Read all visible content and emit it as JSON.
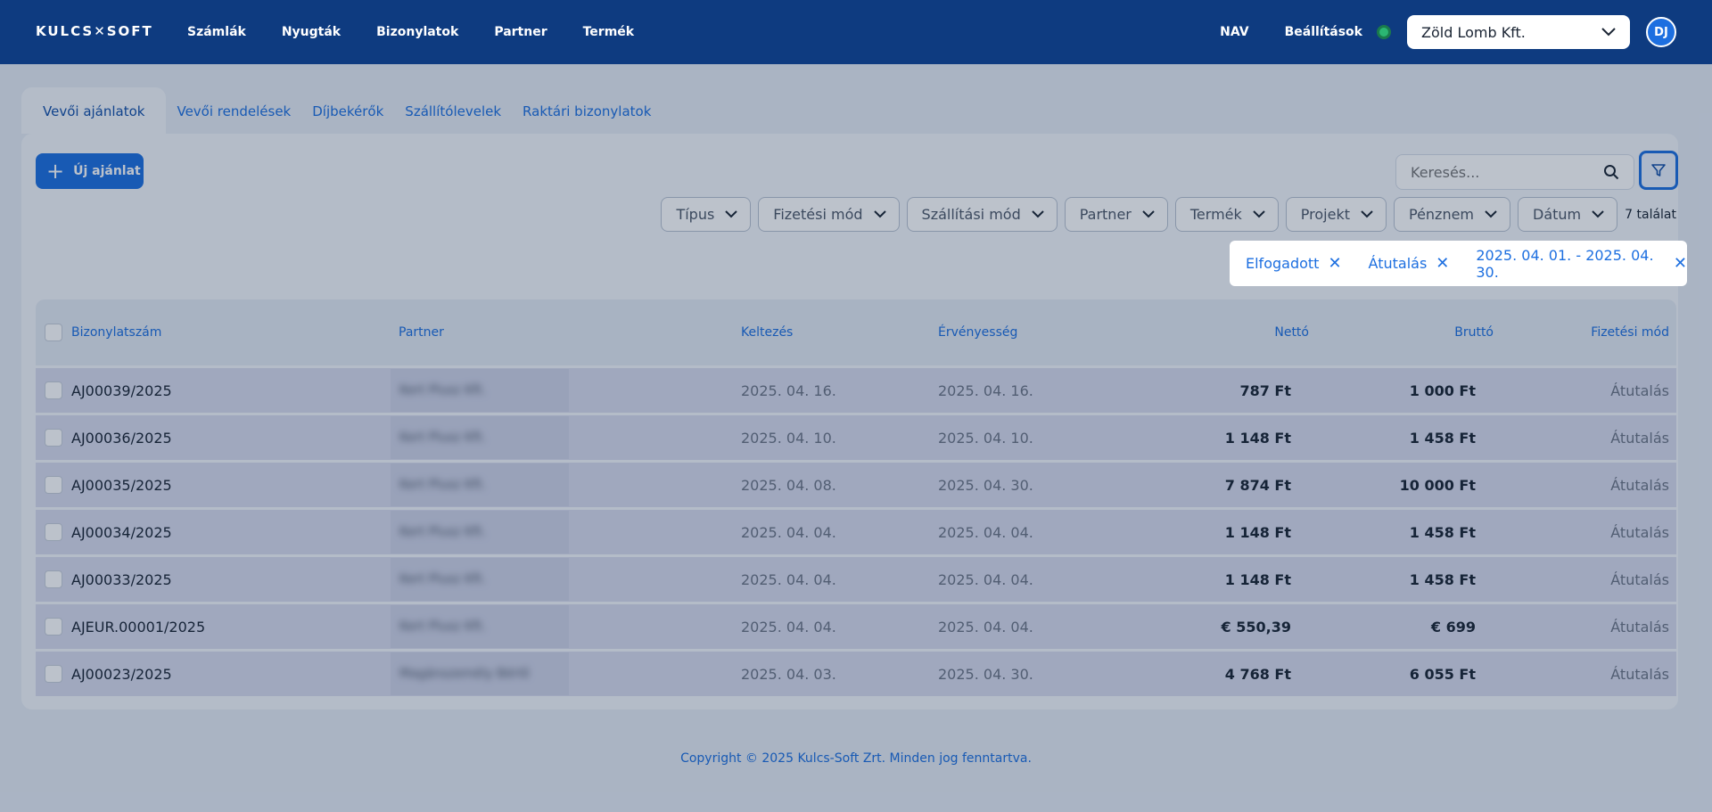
{
  "header": {
    "logo": "KULCS✕SOFT",
    "nav": [
      "Számlák",
      "Nyugták",
      "Bizonylatok",
      "Partner",
      "Termék"
    ],
    "right_links": [
      "NAV",
      "Beállítások"
    ],
    "company": "Zöld Lomb Kft.",
    "avatar": "DJ"
  },
  "tabs": [
    "Vevői ajánlatok",
    "Vevői rendelések",
    "Díjbekérők",
    "Szállítólevelek",
    "Raktári bizonylatok"
  ],
  "toolbar": {
    "new_button": "Új ajánlat",
    "search_placeholder": "Keresés..."
  },
  "filters": [
    "Típus",
    "Fizetési mód",
    "Szállítási mód",
    "Partner",
    "Termék",
    "Projekt",
    "Pénznem",
    "Dátum"
  ],
  "result_count": "7 találat",
  "active_filters": [
    "Elfogadott",
    "Átutalás",
    "2025. 04. 01. - 2025. 04. 30."
  ],
  "table": {
    "columns": [
      "Bizonylatszám",
      "Partner",
      "Keltezés",
      "Érvényesség",
      "Nettó",
      "Bruttó",
      "Fizetési mód"
    ],
    "rows": [
      {
        "doc": "AJ00039/2025",
        "partner": "Kert Plusz Kft.",
        "date": "2025. 04. 16.",
        "valid": "2025. 04. 16.",
        "net": "787 Ft",
        "gross": "1 000 Ft",
        "pay": "Átutalás"
      },
      {
        "doc": "AJ00036/2025",
        "partner": "Kert Plusz Kft.",
        "date": "2025. 04. 10.",
        "valid": "2025. 04. 10.",
        "net": "1 148 Ft",
        "gross": "1 458 Ft",
        "pay": "Átutalás"
      },
      {
        "doc": "AJ00035/2025",
        "partner": "Kert Plusz Kft.",
        "date": "2025. 04. 08.",
        "valid": "2025. 04. 30.",
        "net": "7 874 Ft",
        "gross": "10 000 Ft",
        "pay": "Átutalás"
      },
      {
        "doc": "AJ00034/2025",
        "partner": "Kert Plusz Kft.",
        "date": "2025. 04. 04.",
        "valid": "2025. 04. 04.",
        "net": "1 148 Ft",
        "gross": "1 458 Ft",
        "pay": "Átutalás"
      },
      {
        "doc": "AJ00033/2025",
        "partner": "Kert Plusz Kft.",
        "date": "2025. 04. 04.",
        "valid": "2025. 04. 04.",
        "net": "1 148 Ft",
        "gross": "1 458 Ft",
        "pay": "Átutalás"
      },
      {
        "doc": "AJEUR.00001/2025",
        "partner": "Kert Plusz Kft.",
        "date": "2025. 04. 04.",
        "valid": "2025. 04. 04.",
        "net": "€ 550,39",
        "gross": "€ 699",
        "pay": "Átutalás"
      },
      {
        "doc": "AJ00023/2025",
        "partner": "Magánszemély Bérlő",
        "date": "2025. 04. 03.",
        "valid": "2025. 04. 30.",
        "net": "4 768 Ft",
        "gross": "6 055 Ft",
        "pay": "Átutalás"
      }
    ]
  },
  "footer": "Copyright © 2025 Kulcs-Soft Zrt. Minden jog fenntartva.",
  "colors": {
    "header": "#0e3b80",
    "accent": "#1d6fe0",
    "status": "#2bb673"
  }
}
